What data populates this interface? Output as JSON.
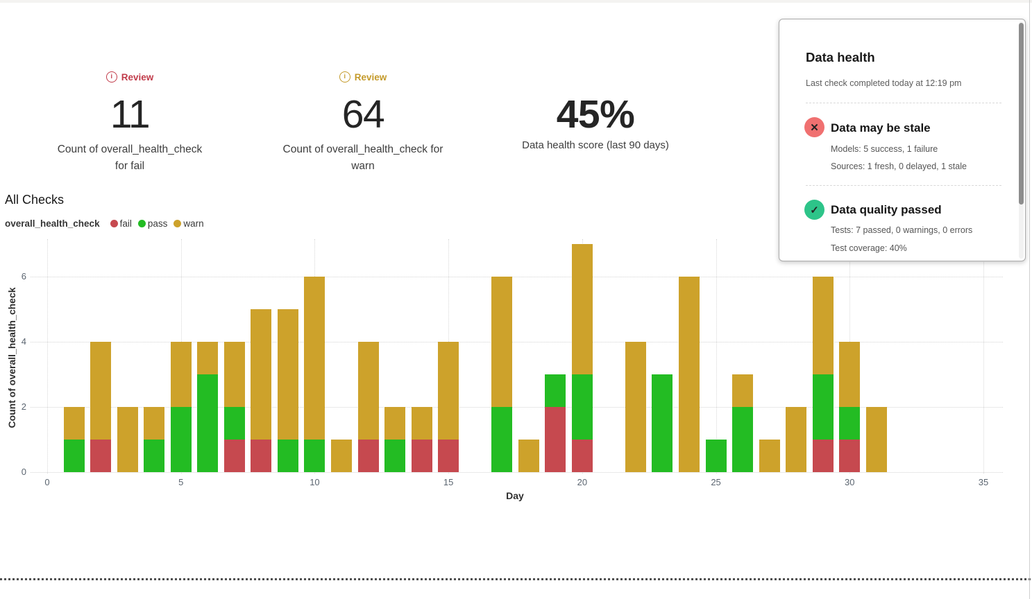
{
  "kpis": [
    {
      "review_label": "Review",
      "review_color": "#c13b4a",
      "value": "11",
      "label_line1": "Count of overall_health_check",
      "label_line2": "for fail"
    },
    {
      "review_label": "Review",
      "review_color": "#c49a2a",
      "value": "64",
      "label_line1": "Count of overall_health_check for",
      "label_line2": "warn"
    },
    {
      "value": "45%",
      "label_line1": "Data health score (last 90 days)"
    }
  ],
  "section": {
    "title": "All Checks",
    "legend_series": "overall_health_check",
    "legend": [
      {
        "label": "fail",
        "color": "#c6494f"
      },
      {
        "label": "pass",
        "color": "#23bc23"
      },
      {
        "label": "warn",
        "color": "#cda22b"
      }
    ]
  },
  "chart_data": {
    "type": "bar",
    "stacked": true,
    "title": "All Checks",
    "xlabel": "Day",
    "ylabel": "Count of overall_health_check",
    "xlim": [
      0,
      35
    ],
    "ylim": [
      0,
      7
    ],
    "x_ticks": [
      0,
      5,
      10,
      15,
      20,
      25,
      30,
      35
    ],
    "y_ticks": [
      0,
      2,
      4,
      6
    ],
    "grid": "dotted",
    "legend_position": "top-left",
    "x": [
      1,
      2,
      3,
      4,
      5,
      6,
      7,
      8,
      9,
      10,
      11,
      12,
      13,
      14,
      15,
      16,
      17,
      18,
      19,
      20,
      21,
      22,
      23,
      24,
      25,
      26,
      27,
      28,
      29,
      30,
      31
    ],
    "series": [
      {
        "name": "fail",
        "color": "#c6494f",
        "values": [
          0,
          1,
          0,
          0,
          0,
          0,
          1,
          1,
          0,
          0,
          0,
          1,
          0,
          1,
          1,
          0,
          0,
          0,
          2,
          1,
          0,
          0,
          0,
          0,
          0,
          0,
          0,
          0,
          1,
          1,
          0
        ]
      },
      {
        "name": "pass",
        "color": "#23bc23",
        "values": [
          1,
          0,
          0,
          1,
          2,
          3,
          1,
          0,
          1,
          1,
          0,
          0,
          1,
          0,
          0,
          0,
          2,
          0,
          1,
          2,
          0,
          0,
          3,
          0,
          1,
          2,
          0,
          0,
          2,
          1,
          0
        ]
      },
      {
        "name": "warn",
        "color": "#cda22b",
        "values": [
          1,
          3,
          2,
          1,
          2,
          1,
          2,
          4,
          4,
          5,
          1,
          3,
          1,
          1,
          3,
          0,
          4,
          1,
          0,
          4,
          0,
          4,
          0,
          6,
          0,
          1,
          1,
          2,
          3,
          2,
          2
        ]
      }
    ]
  },
  "panel": {
    "title": "Data health",
    "subtitle": "Last check completed today at 12:19 pm",
    "sections": [
      {
        "icon": "x-circle",
        "icon_color": "#f07070",
        "icon_glyph": "✕",
        "title": "Data may be stale",
        "line1": "Models: 5 success, 1 failure",
        "line2": "Sources: 1 fresh, 0 delayed, 1 stale"
      },
      {
        "icon": "check-circle",
        "icon_color": "#2dc489",
        "icon_glyph": "✓",
        "title": "Data quality passed",
        "line1": "Tests: 7 passed, 0 warnings, 0 errors",
        "line2": "Test coverage: 40%"
      }
    ]
  }
}
